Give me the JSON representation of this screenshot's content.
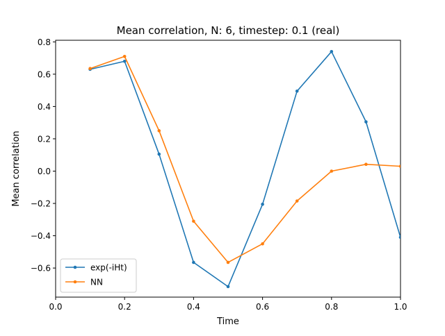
{
  "chart_data": {
    "type": "line",
    "title": "Mean correlation, N: 6, timestep: 0.1 (real)",
    "xlabel": "Time",
    "ylabel": "Mean correlation",
    "xlim": [
      0.0,
      1.0
    ],
    "ylim": [
      -0.78,
      0.81
    ],
    "xticks": [
      0.0,
      0.2,
      0.4,
      0.6,
      0.8,
      1.0
    ],
    "xtick_labels": [
      "0.0",
      "0.2",
      "0.4",
      "0.6",
      "0.8",
      "1.0"
    ],
    "yticks": [
      -0.6,
      -0.4,
      -0.2,
      0.0,
      0.2,
      0.4,
      0.6,
      0.8
    ],
    "ytick_labels": [
      "−0.6",
      "−0.4",
      "−0.2",
      "0.0",
      "0.2",
      "0.4",
      "0.6",
      "0.8"
    ],
    "grid": false,
    "legend_position": "lower-left",
    "x": [
      0.1,
      0.2,
      0.3,
      0.4,
      0.5,
      0.6,
      0.7,
      0.8,
      0.9,
      1.0
    ],
    "series": [
      {
        "name": "exp(-iHt)",
        "color": "#1f77b4",
        "values": [
          0.63,
          0.68,
          0.105,
          -0.565,
          -0.715,
          -0.205,
          0.495,
          0.74,
          0.305,
          -0.41
        ]
      },
      {
        "name": "NN",
        "color": "#ff7f0e",
        "values": [
          0.635,
          0.71,
          0.25,
          -0.31,
          -0.565,
          -0.45,
          -0.185,
          0.0,
          0.042,
          0.03
        ]
      }
    ]
  }
}
